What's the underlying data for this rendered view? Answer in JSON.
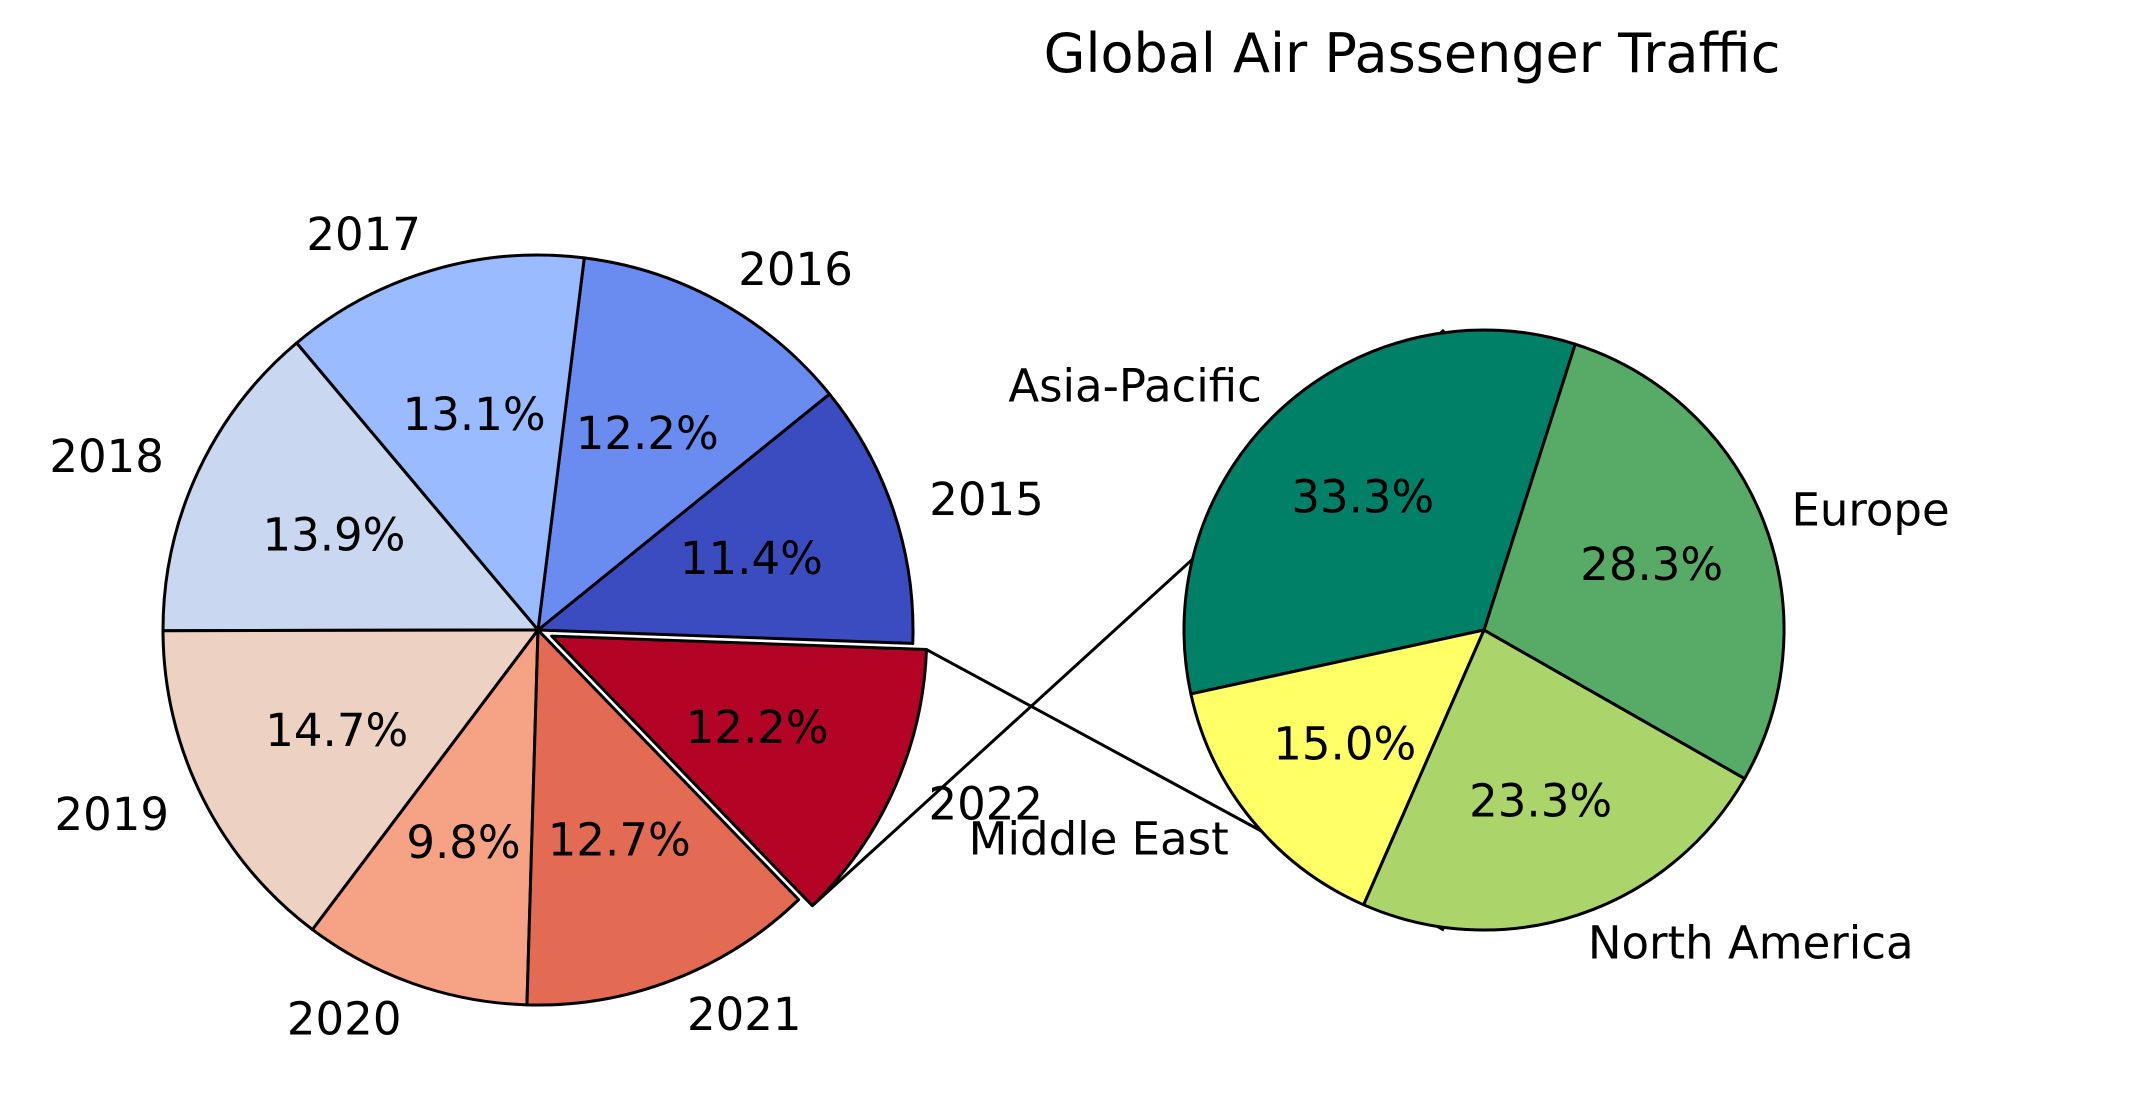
{
  "chart_data": {
    "type": "pie",
    "title": "Global Air Passenger Traffic",
    "charts": [
      {
        "type": "pie",
        "name": "years",
        "categories": [
          "2015",
          "2016",
          "2017",
          "2018",
          "2019",
          "2020",
          "2021",
          "2022"
        ],
        "values": [
          11.4,
          12.2,
          13.1,
          13.9,
          14.7,
          9.8,
          12.7,
          12.2
        ],
        "value_labels": [
          "11.4%",
          "12.2%",
          "13.1%",
          "13.9%",
          "14.7%",
          "9.8%",
          "12.7%",
          "12.2%"
        ],
        "colors": [
          "#3b4cc0",
          "#6a8bef",
          "#9abbff",
          "#c9d7f0",
          "#edd1c2",
          "#f6a385",
          "#e36a53",
          "#b40426"
        ],
        "exploded": [
          "2022"
        ]
      },
      {
        "type": "pie",
        "name": "regions",
        "categories": [
          "Asia-Pacific",
          "Middle East",
          "North America",
          "Europe"
        ],
        "values": [
          33.3,
          15.0,
          23.3,
          28.3
        ],
        "value_labels": [
          "33.3%",
          "15.0%",
          "23.3%",
          "28.3%"
        ],
        "colors": [
          "#008066",
          "#ffff66",
          "#abd46a",
          "#57ab67"
        ]
      }
    ]
  }
}
